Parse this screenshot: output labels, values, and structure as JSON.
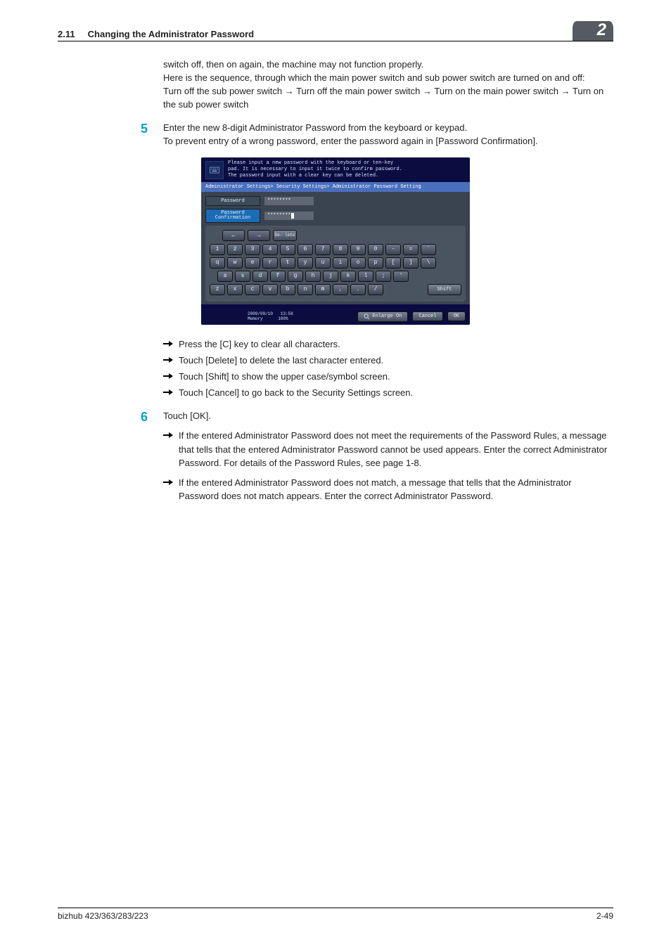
{
  "header": {
    "section_number": "2.11",
    "section_title": "Changing the Administrator Password",
    "chapter_badge": "2"
  },
  "intro_block": {
    "line1": "switch off, then on again, the machine may not function properly.",
    "line2": "Here is the sequence, through which the main power switch and sub power switch are turned on and off:",
    "line3_a": "Turn off the sub power switch ",
    "line3_b": " Turn off the main power switch ",
    "line3_c": " Turn on the main power switch ",
    "line3_d": " Turn on the sub power switch"
  },
  "step5": {
    "num": "5",
    "text1": "Enter the new 8-digit Administrator Password from the keyboard or keypad.",
    "text2": "To prevent entry of a wrong password, enter the password again in [Password Confirmation]."
  },
  "screenshot": {
    "head_line1": "Please input a new password with the keyboard or ten-key",
    "head_line2": "pad.  It is necessary to input it twice to confirm password.",
    "head_line3": "The password input with a clear key can be deleted.",
    "breadcrumb": "Administrator Settings> Security Settings> Administrator Password Setting",
    "field_password_label": "Password",
    "field_password_value": "********",
    "field_confirm_label": "Password Confirmation",
    "field_confirm_value": "********",
    "delete_label": "De-\nlete",
    "row1": [
      "1",
      "2",
      "3",
      "4",
      "5",
      "6",
      "7",
      "8",
      "9",
      "0",
      "-",
      "=",
      "`"
    ],
    "row2": [
      "q",
      "w",
      "e",
      "r",
      "t",
      "y",
      "u",
      "i",
      "o",
      "p",
      "[",
      "]",
      "\\"
    ],
    "row3": [
      "a",
      "s",
      "d",
      "f",
      "g",
      "h",
      "j",
      "k",
      "l",
      ";",
      "'"
    ],
    "row4": [
      "z",
      "x",
      "c",
      "v",
      "b",
      "n",
      "m",
      ",",
      ".",
      "/"
    ],
    "shift_label": "Shift",
    "bottom_date": "2009/09/10",
    "bottom_time": "13:56",
    "bottom_memory": "Memory",
    "bottom_memory_pct": "100%",
    "enlarge_label": "Enlarge On",
    "cancel_label": "Cancel",
    "ok_label": "OK"
  },
  "step5_bullets": {
    "b1": "Press the [C] key to clear all characters.",
    "b2": "Touch [Delete] to delete the last character entered.",
    "b3": "Touch [Shift] to show the upper case/symbol screen.",
    "b4": "Touch [Cancel] to go back to the Security Settings screen."
  },
  "step6": {
    "num": "6",
    "text": "Touch [OK].",
    "i1": "If the entered Administrator Password does not meet the requirements of the Password Rules, a message that tells that the entered Administrator Password cannot be used appears. Enter the correct Administrator Password. For details of the Password Rules, see page 1-8.",
    "i2": "If the entered Administrator Password does not match, a message that tells that the Administrator Password does not match appears. Enter the correct Administrator Password."
  },
  "footer": {
    "left": "bizhub 423/363/283/223",
    "right": "2-49"
  },
  "colors": {
    "accent": "#00a0d0",
    "header_badge_bg": "#555b60"
  }
}
